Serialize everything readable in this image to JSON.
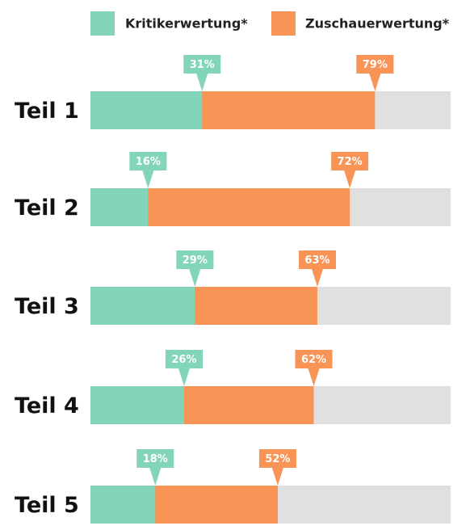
{
  "chart_data": {
    "type": "bar",
    "categories": [
      "Teil 1",
      "Teil 2",
      "Teil 3",
      "Teil 4",
      "Teil 5"
    ],
    "series": [
      {
        "name": "Kritikerwertung*",
        "color": "#82d5b9",
        "values": [
          31,
          16,
          29,
          26,
          18
        ],
        "value_labels": [
          "31%",
          "16%",
          "29%",
          "26%",
          "18%"
        ]
      },
      {
        "name": "Zuschauerwertung*",
        "color": "#f89456",
        "values": [
          79,
          72,
          63,
          62,
          52
        ],
        "value_labels": [
          "79%",
          "72%",
          "63%",
          "62%",
          "52%"
        ]
      }
    ],
    "xlim": [
      0,
      100
    ]
  }
}
